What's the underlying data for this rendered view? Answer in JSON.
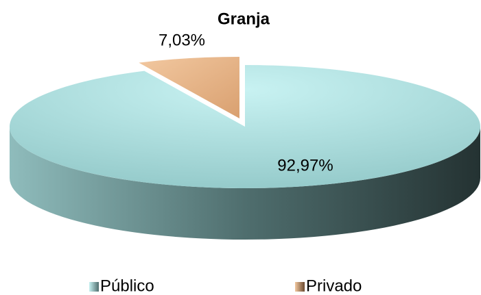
{
  "chart_data": {
    "type": "pie",
    "title": "Granja",
    "categories": [
      "Público",
      "Privado"
    ],
    "values": [
      92.97,
      7.03
    ],
    "value_labels": [
      "92,97%",
      "7,03%"
    ],
    "colors": [
      "#b8e8e8",
      "#e6b487"
    ]
  }
}
